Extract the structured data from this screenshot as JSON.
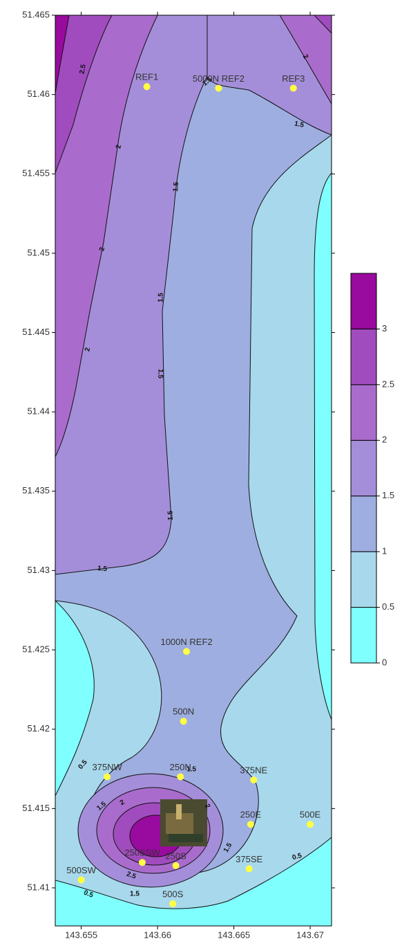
{
  "chart_data": {
    "type": "contour",
    "xlim": [
      143.6533,
      143.6714
    ],
    "ylim": [
      51.4076,
      51.465
    ],
    "xticks": [
      143.655,
      143.66,
      143.665,
      143.67
    ],
    "yticks": [
      51.41,
      51.415,
      51.42,
      51.425,
      51.43,
      51.435,
      51.44,
      51.445,
      51.45,
      51.455,
      51.46,
      51.465
    ],
    "points": {
      "color": "#ffff44",
      "names": [
        "REF1",
        "5000N REF2",
        "REF3",
        "1000N REF2",
        "500N",
        "375NW",
        "250N",
        "375NE",
        "250E",
        "500E",
        "250SSW",
        "250S",
        "375SE",
        "500SW",
        "500S"
      ],
      "x": [
        143.6593,
        143.664,
        143.6689,
        143.6619,
        143.6617,
        143.6567,
        143.6615,
        143.6663,
        143.6661,
        143.67,
        143.659,
        143.6612,
        143.666,
        143.655,
        143.661
      ],
      "y": [
        51.4605,
        51.4604,
        51.4604,
        51.4249,
        51.4205,
        51.417,
        51.417,
        51.4168,
        51.414,
        51.414,
        51.4116,
        51.4114,
        51.4112,
        51.4105,
        51.409
      ]
    },
    "contour_labels": [
      2.5,
      2,
      2,
      2,
      1.5,
      1.5,
      1.5,
      1.5,
      1.5,
      1.5,
      2,
      1.5,
      0.5,
      1.5,
      2,
      1.5,
      2,
      1.5,
      2.5,
      1.5,
      0.5,
      0.5
    ],
    "colorbar": {
      "lim": [
        0,
        3.5
      ],
      "levels": [
        0,
        0.5,
        1,
        1.5,
        2,
        2.5,
        3
      ],
      "colors": [
        "#80ffff",
        "#a8d8ec",
        "#9eaee0",
        "#a48ed9",
        "#a96ccc",
        "#a04cbe",
        "#990a9e"
      ]
    }
  }
}
